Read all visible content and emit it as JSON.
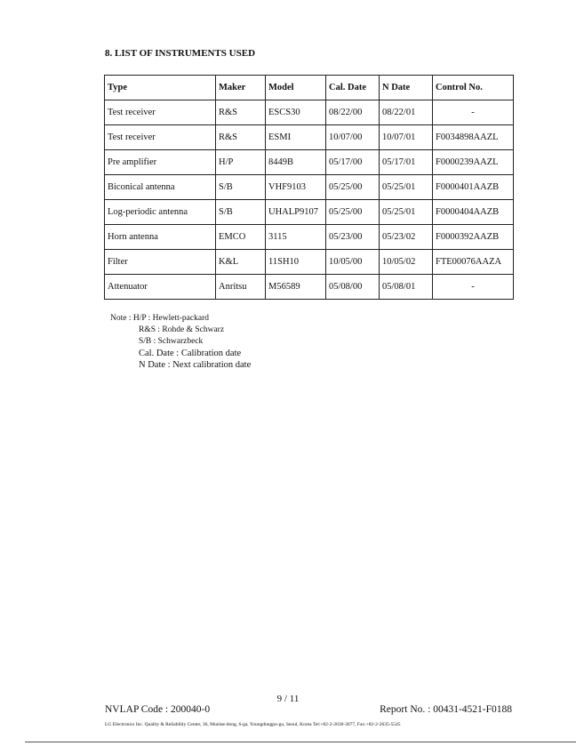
{
  "section_title": "8. LIST OF INSTRUMENTS USED",
  "table": {
    "headers": [
      "Type",
      "Maker",
      "Model",
      "Cal. Date",
      "N Date",
      "Control No."
    ],
    "rows": [
      [
        "Test receiver",
        "R&S",
        "ESCS30",
        "08/22/00",
        "08/22/01",
        "-"
      ],
      [
        "Test receiver",
        "R&S",
        "ESMI",
        "10/07/00",
        "10/07/01",
        "F0034898AAZL"
      ],
      [
        "Pre amplifier",
        "H/P",
        "8449B",
        "05/17/00",
        "05/17/01",
        "F0000239AAZL"
      ],
      [
        "Biconical antenna",
        "S/B",
        "VHF9103",
        "05/25/00",
        "05/25/01",
        "F0000401AAZB"
      ],
      [
        "Log-periodic antenna",
        "S/B",
        "UHALP9107",
        "05/25/00",
        "05/25/01",
        "F0000404AAZB"
      ],
      [
        "Horn antenna",
        "EMCO",
        "3115",
        "05/23/00",
        "05/23/02",
        "F0000392AAZB"
      ],
      [
        "Filter",
        "K&L",
        "11SH10",
        "10/05/00",
        "10/05/02",
        "FTE00076AAZA"
      ],
      [
        "Attenuator",
        "Anritsu",
        "M56589",
        "05/08/00",
        "05/08/01",
        "-"
      ]
    ]
  },
  "notes": {
    "label": "Note :",
    "lines": [
      "H/P : Hewlett-packard",
      "R&S : Rohde & Schwarz",
      "S/B : Schwarzbeck",
      "Cal. Date : Calibration date",
      "N Date : Next calibration date"
    ]
  },
  "footer": {
    "page": "9 / 11",
    "nvlap": "NVLAP Code : 200040-0",
    "report": "Report No. : 00431-4521-F0188",
    "address": "LG Electronics Inc. Quality & Reliability Center, 36, Munlae-dong, 6-ga, Youngdungpo-gu, Seoul, Korea    Tel:+82-2-2630-3077, Fax:+82-2-2635-5545"
  }
}
